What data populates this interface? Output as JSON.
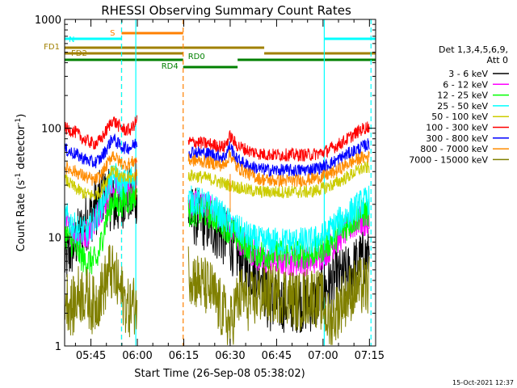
{
  "chart_data": {
    "type": "line",
    "title": "RHESSI Observing Summary Count Rates",
    "xlabel": "Start Time (26-Sep-08 05:38:02)",
    "ylabel_parts": [
      "Count Rate (s",
      "-1",
      " detector",
      "-1",
      ")"
    ],
    "yscale": "log",
    "ylim": [
      1,
      1000
    ],
    "xlim_minutes": [
      -1.5,
      99.0
    ],
    "x_ticks": [
      {
        "label": "05:45",
        "min": 7
      },
      {
        "label": "06:00",
        "min": 22
      },
      {
        "label": "06:15",
        "min": 37
      },
      {
        "label": "06:30",
        "min": 52
      },
      {
        "label": "06:45",
        "min": 67
      },
      {
        "label": "07:00",
        "min": 82
      },
      {
        "label": "07:15",
        "min": 97
      }
    ],
    "y_ticks": [
      {
        "label": "1",
        "value": 1
      },
      {
        "label": "10",
        "value": 10
      },
      {
        "label": "100",
        "value": 100
      },
      {
        "label": "1000",
        "value": 1000
      }
    ],
    "legend_title": [
      "Det 1,3,4,5,6,9,",
      "Att 0"
    ],
    "legend_position": "right",
    "series": [
      {
        "name": "3 - 6 keV",
        "color": "#000000",
        "values_a": [
          [
            -1.5,
            6
          ],
          [
            2,
            9
          ],
          [
            5,
            13
          ],
          [
            9,
            20
          ],
          [
            11,
            25
          ],
          [
            13,
            22
          ],
          [
            15,
            18
          ],
          [
            16,
            20
          ],
          [
            17,
            22
          ],
          [
            18,
            24
          ],
          [
            19,
            25
          ],
          [
            20,
            22
          ],
          [
            21,
            23
          ],
          [
            22,
            25
          ]
        ],
        "values_b": [
          [
            38.5,
            16
          ],
          [
            42,
            15
          ],
          [
            47,
            12
          ],
          [
            50,
            10
          ],
          [
            52,
            9
          ],
          [
            55,
            6.5
          ],
          [
            58,
            5
          ],
          [
            62,
            5
          ],
          [
            64,
            2.5
          ],
          [
            70,
            2.5
          ],
          [
            76,
            2.5
          ],
          [
            80,
            2.5
          ],
          [
            82,
            3.3
          ],
          [
            86,
            4
          ],
          [
            90,
            4.5
          ],
          [
            94,
            6
          ],
          [
            97,
            7
          ]
        ]
      },
      {
        "name": "6 - 12 keV",
        "color": "#ff00ff",
        "values_a": [
          [
            -1.5,
            13
          ],
          [
            3,
            10
          ],
          [
            6,
            11
          ],
          [
            10,
            18
          ],
          [
            13,
            25
          ],
          [
            15,
            30
          ],
          [
            17,
            26
          ],
          [
            19,
            27
          ],
          [
            21,
            28
          ],
          [
            22,
            35
          ]
        ],
        "values_b": [
          [
            38.5,
            20
          ],
          [
            42,
            19
          ],
          [
            46,
            18
          ],
          [
            50,
            14
          ],
          [
            54,
            10
          ],
          [
            58,
            8
          ],
          [
            62,
            6
          ],
          [
            66,
            6
          ],
          [
            70,
            6
          ],
          [
            74,
            6
          ],
          [
            78,
            6
          ],
          [
            82,
            7
          ],
          [
            86,
            9
          ],
          [
            90,
            12
          ],
          [
            94,
            14
          ],
          [
            97,
            13
          ]
        ]
      },
      {
        "name": "12 - 25 keV",
        "color": "#00ff00",
        "values_a": [
          [
            -1.5,
            11
          ],
          [
            2,
            8
          ],
          [
            5,
            6
          ],
          [
            9,
            6
          ],
          [
            12,
            15
          ],
          [
            14,
            22
          ],
          [
            16,
            20
          ],
          [
            18,
            22
          ],
          [
            20,
            22
          ],
          [
            22,
            28
          ]
        ],
        "values_b": [
          [
            38.5,
            17
          ],
          [
            42,
            17
          ],
          [
            46,
            16
          ],
          [
            50,
            13
          ],
          [
            54,
            10
          ],
          [
            58,
            8
          ],
          [
            62,
            7
          ],
          [
            66,
            7
          ],
          [
            70,
            7
          ],
          [
            74,
            7
          ],
          [
            78,
            7
          ],
          [
            82,
            8
          ],
          [
            86,
            10
          ],
          [
            90,
            13
          ],
          [
            94,
            16
          ],
          [
            97,
            17
          ]
        ]
      },
      {
        "name": "25 - 50 keV",
        "color": "#00ffff",
        "values_a": [
          [
            -1.5,
            16
          ],
          [
            2,
            12
          ],
          [
            6,
            11
          ],
          [
            10,
            18
          ],
          [
            13,
            32
          ],
          [
            15,
            36
          ],
          [
            17,
            30
          ],
          [
            19,
            32
          ],
          [
            21,
            36
          ],
          [
            22,
            40
          ]
        ],
        "values_b": [
          [
            38.5,
            22
          ],
          [
            42,
            21
          ],
          [
            46,
            19
          ],
          [
            50,
            15
          ],
          [
            54,
            12
          ],
          [
            58,
            10
          ],
          [
            62,
            9
          ],
          [
            66,
            9
          ],
          [
            70,
            9
          ],
          [
            74,
            9
          ],
          [
            78,
            9
          ],
          [
            82,
            10
          ],
          [
            86,
            13
          ],
          [
            90,
            16
          ],
          [
            94,
            20
          ],
          [
            97,
            22
          ]
        ]
      },
      {
        "name": "50 - 100 keV",
        "color": "#cccc00",
        "values_a": [
          [
            -1.5,
            34
          ],
          [
            2,
            28
          ],
          [
            5,
            25
          ],
          [
            8,
            24
          ],
          [
            10,
            26
          ],
          [
            12,
            33
          ],
          [
            14,
            44
          ],
          [
            16,
            36
          ],
          [
            18,
            34
          ],
          [
            20,
            35
          ],
          [
            22,
            38
          ]
        ],
        "values_b": [
          [
            38.5,
            37
          ],
          [
            42,
            36
          ],
          [
            46,
            34
          ],
          [
            50,
            31
          ],
          [
            54,
            29
          ],
          [
            58,
            27
          ],
          [
            62,
            26
          ],
          [
            66,
            26
          ],
          [
            70,
            26
          ],
          [
            74,
            26
          ],
          [
            78,
            26
          ],
          [
            82,
            28
          ],
          [
            86,
            31
          ],
          [
            90,
            36
          ],
          [
            94,
            42
          ],
          [
            97,
            44
          ]
        ]
      },
      {
        "name": "100 - 300 keV",
        "color": "#ff0000",
        "values_a": [
          [
            -1.5,
            100
          ],
          [
            2,
            92
          ],
          [
            5,
            78
          ],
          [
            8,
            72
          ],
          [
            10,
            77
          ],
          [
            12,
            95
          ],
          [
            14,
            120
          ],
          [
            16,
            105
          ],
          [
            18,
            96
          ],
          [
            20,
            98
          ],
          [
            22,
            120
          ]
        ],
        "values_b": [
          [
            38.5,
            75
          ],
          [
            42,
            74
          ],
          [
            46,
            71
          ],
          [
            50,
            67
          ],
          [
            52,
            85
          ],
          [
            54,
            70
          ],
          [
            58,
            62
          ],
          [
            62,
            58
          ],
          [
            66,
            57
          ],
          [
            70,
            57
          ],
          [
            74,
            57
          ],
          [
            78,
            57
          ],
          [
            82,
            60
          ],
          [
            86,
            68
          ],
          [
            90,
            80
          ],
          [
            94,
            96
          ],
          [
            97,
            105
          ]
        ]
      },
      {
        "name": "300 - 800 keV",
        "color": "#0000ff",
        "values_a": [
          [
            -1.5,
            64
          ],
          [
            2,
            58
          ],
          [
            5,
            52
          ],
          [
            8,
            48
          ],
          [
            10,
            52
          ],
          [
            12,
            64
          ],
          [
            14,
            82
          ],
          [
            16,
            71
          ],
          [
            18,
            66
          ],
          [
            20,
            67
          ],
          [
            22,
            75
          ]
        ],
        "values_b": [
          [
            38.5,
            61
          ],
          [
            42,
            60
          ],
          [
            46,
            58
          ],
          [
            50,
            54
          ],
          [
            52,
            69
          ],
          [
            54,
            52
          ],
          [
            58,
            45
          ],
          [
            62,
            42
          ],
          [
            66,
            41
          ],
          [
            70,
            41
          ],
          [
            74,
            41
          ],
          [
            78,
            42
          ],
          [
            82,
            44
          ],
          [
            86,
            50
          ],
          [
            90,
            58
          ],
          [
            94,
            66
          ],
          [
            97,
            72
          ]
        ]
      },
      {
        "name": "800 - 7000 keV",
        "color": "#ff8c00",
        "values_a": [
          [
            -1.5,
            44
          ],
          [
            2,
            40
          ],
          [
            5,
            36
          ],
          [
            8,
            33
          ],
          [
            10,
            36
          ],
          [
            12,
            45
          ],
          [
            14,
            58
          ],
          [
            16,
            50
          ],
          [
            18,
            46
          ],
          [
            20,
            48
          ],
          [
            22,
            52
          ]
        ],
        "values_b": [
          [
            38.5,
            51
          ],
          [
            42,
            50
          ],
          [
            46,
            48
          ],
          [
            50,
            45
          ],
          [
            52,
            58
          ],
          [
            54,
            44
          ],
          [
            58,
            38
          ],
          [
            62,
            34
          ],
          [
            66,
            33
          ],
          [
            70,
            33
          ],
          [
            74,
            33
          ],
          [
            78,
            34
          ],
          [
            82,
            36
          ],
          [
            86,
            40
          ],
          [
            90,
            47
          ],
          [
            94,
            53
          ],
          [
            97,
            55
          ]
        ]
      },
      {
        "name": "7000 - 15000 keV",
        "color": "#808000",
        "values_a": [
          [
            -1.5,
            3
          ],
          [
            1,
            2.2
          ],
          [
            3,
            3
          ],
          [
            5,
            3
          ],
          [
            8,
            2.3
          ],
          [
            10,
            3
          ],
          [
            12,
            4
          ],
          [
            13,
            5
          ],
          [
            15,
            4
          ],
          [
            17,
            3
          ],
          [
            19,
            2.2
          ],
          [
            22,
            2.5
          ]
        ],
        "values_b": [
          [
            38.5,
            5
          ],
          [
            41,
            4
          ],
          [
            44,
            3.5
          ],
          [
            46,
            3.2
          ],
          [
            48,
            2.4
          ],
          [
            50,
            2
          ],
          [
            52,
            1.5
          ],
          [
            54,
            2.5
          ],
          [
            56,
            3
          ],
          [
            58,
            2.5
          ],
          [
            62,
            3
          ],
          [
            66,
            3
          ],
          [
            70,
            3
          ],
          [
            74,
            2.5
          ],
          [
            78,
            3
          ],
          [
            82,
            2.5
          ],
          [
            84,
            1.6
          ],
          [
            86,
            2
          ],
          [
            88,
            2.5
          ],
          [
            90,
            3
          ],
          [
            93,
            3.5
          ],
          [
            97,
            3.5
          ]
        ]
      }
    ],
    "top_bars": [
      {
        "label": "S",
        "color": "#ff8000",
        "start": 16.9,
        "end": 36.8,
        "level": 1
      },
      {
        "label": "N",
        "color": "#00ffff",
        "start": -1.5,
        "end": 16.9,
        "level": 2
      },
      {
        "label": "",
        "color": "#00ffff",
        "start": 82.4,
        "end": 99,
        "level": 2
      },
      {
        "label": "FD1",
        "color": "#a08000",
        "start": -1.5,
        "end": 63,
        "level": 3
      },
      {
        "label": "FD2",
        "color": "#a08000",
        "start": -1.5,
        "end": 36.8,
        "level": 4
      },
      {
        "label": "",
        "color": "#a08000",
        "start": 63,
        "end": 99,
        "level": 4
      },
      {
        "label": "RD0",
        "color": "#008000",
        "start": -1.5,
        "end": 36.8,
        "level": 5
      },
      {
        "label": "",
        "color": "#008000",
        "start": 54.4,
        "end": 99,
        "level": 5
      },
      {
        "label": "RD4",
        "color": "#008000",
        "start": 36.8,
        "end": 54.4,
        "level": 6
      }
    ],
    "vlines": [
      {
        "x": 16.9,
        "color": "#ff8000",
        "style": "dashed"
      },
      {
        "x": 16.9,
        "color": "#00ffff",
        "style": "dashed"
      },
      {
        "x": 21.5,
        "color": "#00ffff",
        "style": "solid"
      },
      {
        "x": 36.8,
        "color": "#ff8000",
        "style": "dashed"
      },
      {
        "x": 82.4,
        "color": "#00ffff",
        "style": "solid"
      },
      {
        "x": 97.5,
        "color": "#00ffff",
        "style": "dashed"
      }
    ],
    "step_markers": [
      {
        "x": 21.5,
        "from": 22,
        "to": 52,
        "color": "#ff0000"
      },
      {
        "x": 52,
        "from": 17,
        "to": 38,
        "color": "#ff8000"
      }
    ]
  },
  "timestamp": "15-Oct-2021 12:37"
}
